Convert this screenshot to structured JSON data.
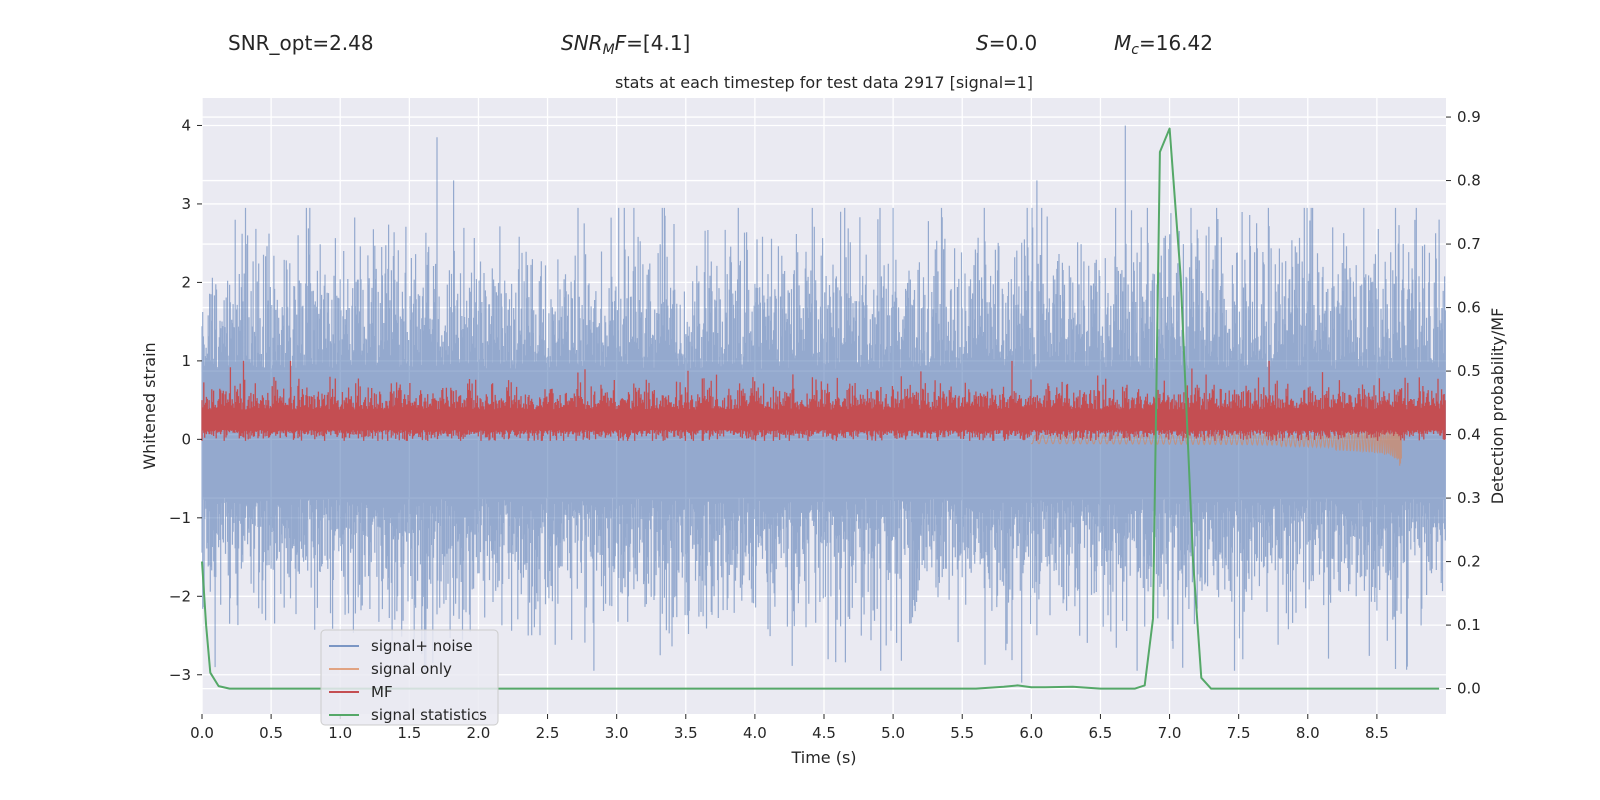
{
  "header": {
    "snr_opt": "SNR_opt=2.48",
    "snr_mf_sym": "SNR",
    "snr_mf_sub": "M",
    "snr_mf_sym2": "F",
    "snr_mf_val": "=[4.1]",
    "s_sym": "S",
    "s_val": "=0.0",
    "mc_sym": "M",
    "mc_sub": "c",
    "mc_val": "=16.42"
  },
  "chart_data": {
    "type": "line",
    "title": "stats at each timestep for test data 2917 [signal=1]",
    "xlabel": "Time (s)",
    "ylabel": "Whitened strain",
    "y2label": "Detection probability/MF",
    "xlim": [
      0.0,
      9.0
    ],
    "ylim": [
      -3.5,
      4.35
    ],
    "y2lim": [
      -0.04,
      0.93
    ],
    "x_ticks": [
      "0.0",
      "0.5",
      "1.0",
      "1.5",
      "2.0",
      "2.5",
      "3.0",
      "3.5",
      "4.0",
      "4.5",
      "5.0",
      "5.5",
      "6.0",
      "6.5",
      "7.0",
      "7.5",
      "8.0",
      "8.5"
    ],
    "y_ticks": [
      "−3",
      "−2",
      "−1",
      "0",
      "1",
      "2",
      "3",
      "4"
    ],
    "y2_ticks": [
      "0.0",
      "0.1",
      "0.2",
      "0.3",
      "0.4",
      "0.5",
      "0.6",
      "0.7",
      "0.8",
      "0.9"
    ],
    "legend_position": "lower-left",
    "series": [
      {
        "name": "signal+ noise",
        "color": "#4c72b0",
        "note": "dense whitened noise, approx range -3.1 to 4.0",
        "spikes": [
          [
            1.7,
            3.85
          ],
          [
            1.82,
            3.3
          ],
          [
            5.93,
            -3.1
          ],
          [
            6.04,
            3.3
          ],
          [
            6.68,
            4.0
          ],
          [
            3.35,
            2.85
          ],
          [
            4.62,
            2.9
          ],
          [
            8.95,
            2.8
          ]
        ]
      },
      {
        "name": "signal only",
        "color": "#dd8452",
        "note": "chirp growing in amplitude toward merger",
        "t_start": 6.0,
        "t_merger": 8.68,
        "peak_amp": 0.45
      },
      {
        "name": "MF",
        "color": "#c44e52",
        "note": "matched-filter output, band approx 0.0 to 1.0",
        "spikes": [
          [
            0.3,
            1.0
          ],
          [
            0.64,
            1.0
          ],
          [
            5.86,
            1.0
          ],
          [
            7.72,
            1.0
          ]
        ]
      },
      {
        "name": "signal statistics",
        "color": "#55a868",
        "axis": "right",
        "x": [
          0.0,
          0.03,
          0.06,
          0.12,
          0.2,
          0.5,
          1.0,
          2.0,
          3.0,
          4.0,
          5.0,
          5.6,
          5.8,
          5.9,
          6.0,
          6.1,
          6.3,
          6.5,
          6.75,
          6.82,
          6.88,
          6.93,
          7.0,
          7.08,
          7.17,
          7.23,
          7.3,
          7.5,
          8.0,
          8.5,
          8.95
        ],
        "values": [
          0.2,
          0.1,
          0.025,
          0.004,
          0.0,
          0.0,
          0.0,
          0.0,
          0.0,
          0.0,
          0.0,
          0.0,
          0.003,
          0.005,
          0.002,
          0.002,
          0.003,
          0.0,
          0.0,
          0.005,
          0.11,
          0.845,
          0.882,
          0.65,
          0.2,
          0.017,
          0.0,
          0.0,
          0.0,
          0.0,
          0.0
        ]
      }
    ]
  }
}
